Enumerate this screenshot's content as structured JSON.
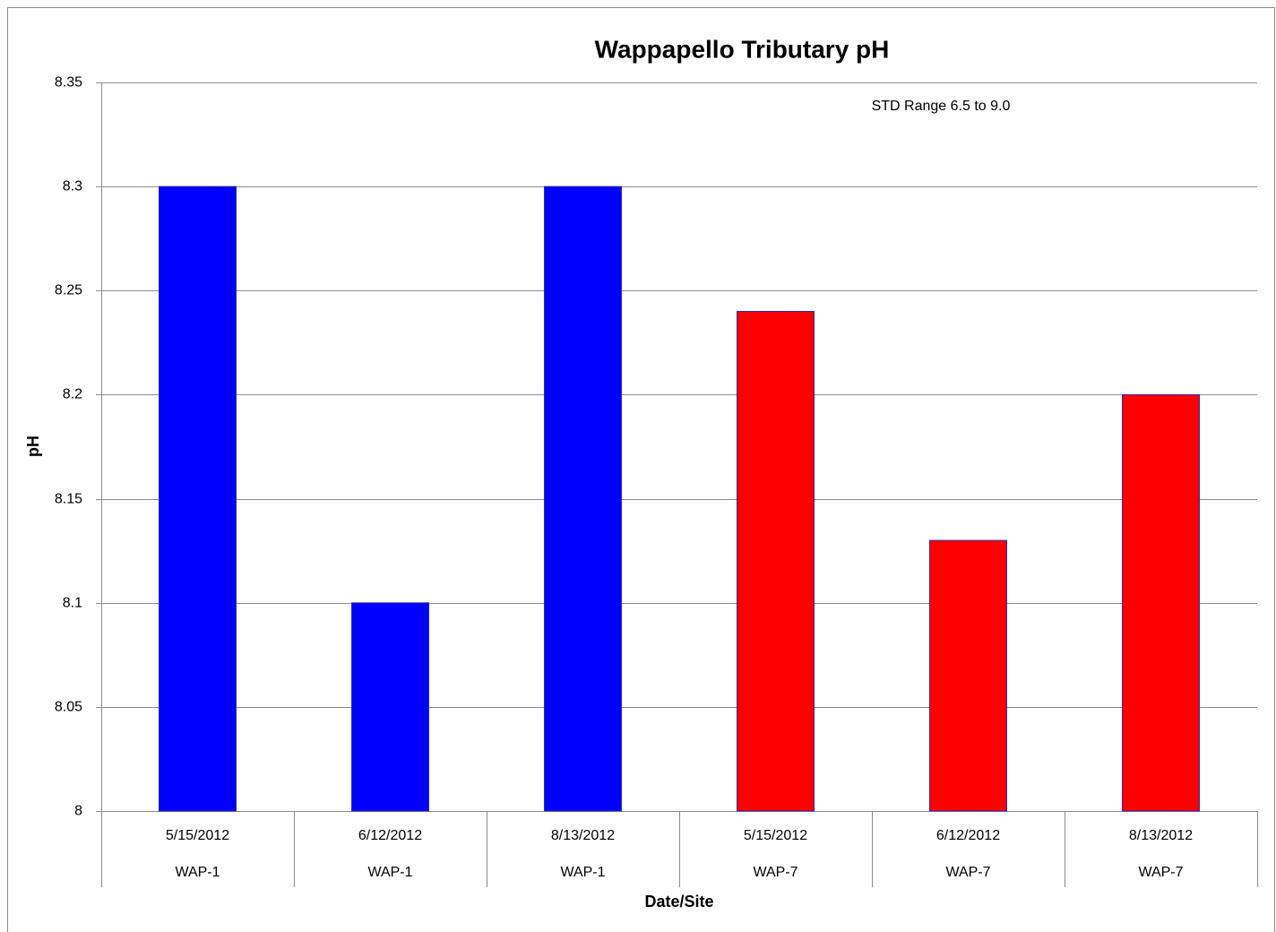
{
  "chart_data": {
    "type": "bar",
    "title": "Wappapello Tributary pH",
    "annotation": "STD Range 6.5 to 9.0",
    "x_label": "Date/Site",
    "y_label": "pH",
    "categories": [
      "5/15/2012",
      "6/12/2012",
      "8/13/2012",
      "5/15/2012",
      "6/12/2012",
      "8/13/2012"
    ],
    "sites": [
      "WAP-1",
      "WAP-1",
      "WAP-1",
      "WAP-7",
      "WAP-7",
      "WAP-7"
    ],
    "values": [
      8.3,
      8.1,
      8.3,
      8.24,
      8.13,
      8.2
    ],
    "colors": [
      "#0000ff",
      "#0000ff",
      "#0000ff",
      "#ff0000",
      "#ff0000",
      "#ff0000"
    ],
    "edge_color": "#2a2ab0",
    "ylim": [
      8,
      8.35
    ],
    "yticks": [
      8,
      8.05,
      8.1,
      8.15,
      8.2,
      8.25,
      8.3,
      8.35
    ],
    "grid": true
  }
}
